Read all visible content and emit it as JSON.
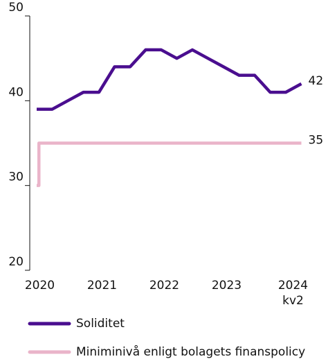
{
  "chart_data": {
    "type": "line",
    "categories": [
      null,
      "2020",
      null,
      null,
      null,
      "2021",
      null,
      null,
      null,
      "2022",
      null,
      null,
      null,
      "2023",
      null,
      null,
      null,
      "2024 kv2"
    ],
    "series": [
      {
        "name": "Soliditet",
        "color": "#4a0e8f",
        "values": [
          39,
          39,
          40,
          41,
          41,
          44,
          44,
          46,
          46,
          45,
          46,
          45,
          44,
          43,
          43,
          41,
          41,
          42
        ]
      },
      {
        "name": "Miniminivå enligt bolagets finanspolicy",
        "color": "#eab4c9",
        "drawstyle": "steps-mid",
        "values": [
          30,
          35,
          35,
          35,
          35,
          35,
          35,
          35,
          35,
          35,
          35,
          35,
          35,
          35,
          35,
          35,
          35,
          35
        ]
      }
    ],
    "end_labels": true,
    "ylim": [
      20,
      50
    ],
    "yticks": [
      20,
      30,
      40,
      50
    ],
    "legend": "bottom"
  }
}
